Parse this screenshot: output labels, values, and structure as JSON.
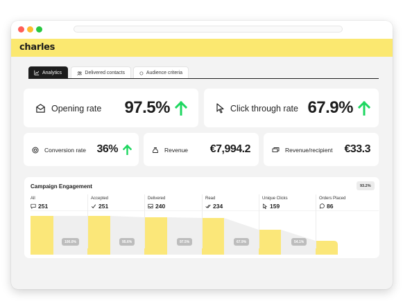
{
  "app": {
    "brand": "charles"
  },
  "colors": {
    "brand_yellow": "#fbe870",
    "bar_yellow": "#fbe779",
    "arrow_green": "#1ed760",
    "tab_active": "#1d1d1d"
  },
  "tabs": [
    {
      "label": "Analytics",
      "icon": "chart-icon",
      "active": true
    },
    {
      "label": "Delivered contacts",
      "icon": "people-icon",
      "active": false
    },
    {
      "label": "Audience criteria",
      "icon": "circle-icon",
      "active": false
    }
  ],
  "kpis_large": [
    {
      "label": "Opening rate",
      "value": "97.5%",
      "icon": "mail-open-icon",
      "trend": "up"
    },
    {
      "label": "Click through rate",
      "value": "67.9%",
      "icon": "cursor-icon",
      "trend": "up"
    }
  ],
  "kpis_small": [
    {
      "label": "Conversion rate",
      "value": "36%",
      "icon": "target-icon",
      "trend": "up"
    },
    {
      "label": "Revenue",
      "value": "€7,994.2",
      "icon": "money-bag-icon",
      "trend": "up"
    },
    {
      "label": "Revenue/recipient",
      "value": "€33.3",
      "icon": "cash-icon",
      "trend": "none"
    }
  ],
  "engagement": {
    "title": "Campaign Engagement",
    "overall_badge": "93.2%",
    "stages": [
      {
        "label": "All",
        "count": "251",
        "icon": "chat-icon"
      },
      {
        "label": "Accepted",
        "count": "251",
        "icon": "check-icon"
      },
      {
        "label": "Delivered",
        "count": "240",
        "icon": "inbox-icon"
      },
      {
        "label": "Read",
        "count": "234",
        "icon": "double-check-icon"
      },
      {
        "label": "Unique Clicks",
        "count": "159",
        "icon": "cursor-icon"
      },
      {
        "label": "Orders Placed",
        "count": "86",
        "icon": "whatsapp-icon"
      }
    ],
    "conversion_badges": [
      "100.0%",
      "95.6%",
      "97.5%",
      "67.9%",
      "54.1%"
    ]
  }
}
